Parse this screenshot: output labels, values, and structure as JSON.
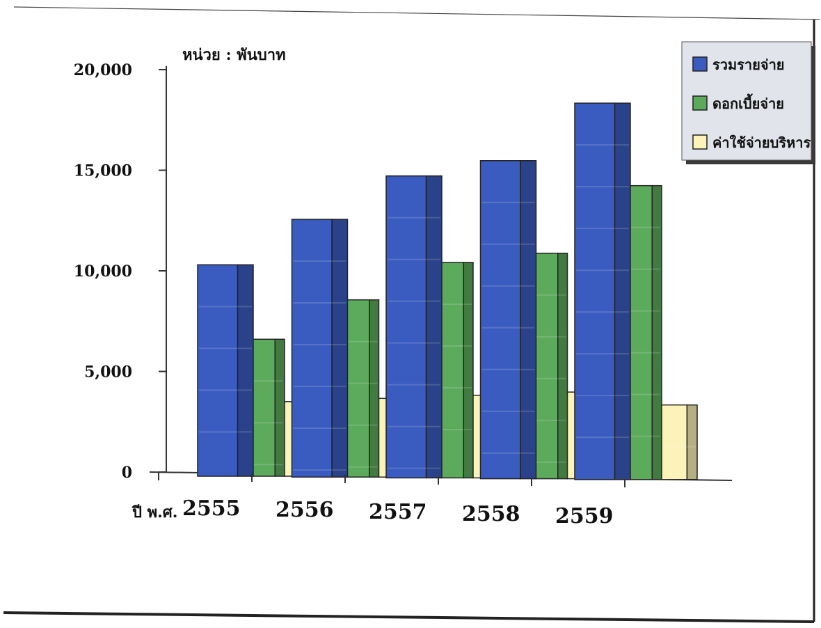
{
  "chart_data": {
    "type": "bar",
    "unit_label": "หน่วย : พันบาท",
    "xlabel": "ปี พ.ศ.",
    "categories": [
      "2555",
      "2556",
      "2557",
      "2558",
      "2559"
    ],
    "yticks": [
      "0",
      "5,000",
      "10,000",
      "15,000",
      "20,000"
    ],
    "ytick_values": [
      0,
      5000,
      10000,
      15000,
      20000
    ],
    "ylim": [
      0,
      20000
    ],
    "grid": false,
    "legend_position": "top-right",
    "series": [
      {
        "name": "รวมรายจ่าย",
        "color": "#3a5cc0",
        "values": [
          10300,
          12600,
          14800,
          15600,
          18500
        ]
      },
      {
        "name": "ดอกเบี้ยจ่าย",
        "color": "#5caa5c",
        "values": [
          6600,
          8600,
          10500,
          11000,
          14400
        ]
      },
      {
        "name": "ค่าใช้จ่ายบริหาร",
        "color": "#fbf3b8",
        "values": [
          3500,
          3700,
          3900,
          4100,
          3500
        ]
      }
    ]
  }
}
